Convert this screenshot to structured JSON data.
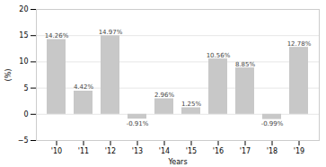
{
  "chart_data": {
    "type": "bar",
    "categories": [
      "'10",
      "'11",
      "'12",
      "'13",
      "'14",
      "'15",
      "'16",
      "'17",
      "'18",
      "'19"
    ],
    "values": [
      14.26,
      4.42,
      14.97,
      -0.91,
      2.96,
      1.25,
      10.56,
      8.85,
      -0.99,
      12.78
    ],
    "value_labels": [
      "14.26%",
      "4.42%",
      "14.97%",
      "-0.91%",
      "2.96%",
      "1.25%",
      "10.56%",
      "8.85%",
      "-0.99%",
      "12.78%"
    ],
    "data_labels": true,
    "color": "#c8c8c8",
    "xlabel": "Years",
    "ylabel": "(%)",
    "ylim": [
      -5,
      20
    ],
    "yticks": [
      -5,
      0,
      5,
      10,
      15,
      20
    ],
    "grid": true
  }
}
